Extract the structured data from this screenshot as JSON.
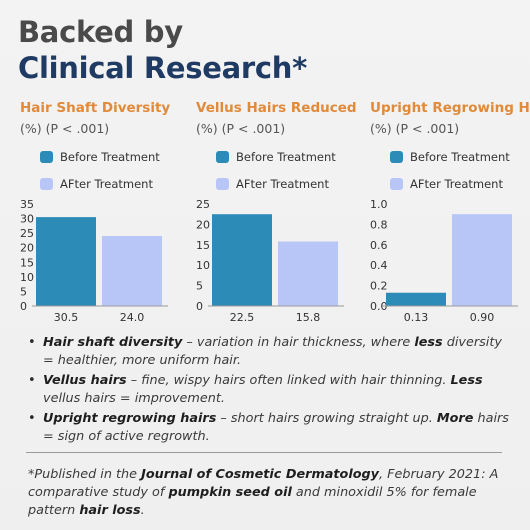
{
  "header": {
    "line1": "Backed by",
    "line2": "Clinical Research*"
  },
  "colors": {
    "before": "#2d8bb8",
    "after": "#b8c6f7",
    "title_accent": "#e08a3a",
    "heading_dark": "#1f3a63"
  },
  "legend": {
    "before": "Before Treatment",
    "after": "AFter Treatment"
  },
  "chart_data": [
    {
      "type": "bar",
      "title": "Hair Shaft Diversity",
      "subtitle": "(%) (P < .001)",
      "categories": [
        "Before Treatment",
        "AFter Treatment"
      ],
      "values": [
        30.5,
        24.0
      ],
      "value_labels": [
        "30.5",
        "24.0"
      ],
      "ylim": [
        0,
        35
      ],
      "yticks": [
        "0",
        "5",
        "10",
        "15",
        "20",
        "25",
        "30",
        "35"
      ],
      "xlabel": "",
      "ylabel": ""
    },
    {
      "type": "bar",
      "title": "Vellus Hairs Reduced",
      "subtitle": "(%) (P < .001)",
      "categories": [
        "Before Treatment",
        "AFter Treatment"
      ],
      "values": [
        22.5,
        15.8
      ],
      "value_labels": [
        "22.5",
        "15.8"
      ],
      "ylim": [
        0,
        25
      ],
      "yticks": [
        "0",
        "5",
        "10",
        "15",
        "20",
        "25"
      ],
      "xlabel": "",
      "ylabel": ""
    },
    {
      "type": "bar",
      "title": "Upright Regrowing Hair",
      "subtitle": "(%) (P < .001)",
      "categories": [
        "Before Treatment",
        "AFter Treatment"
      ],
      "values": [
        0.13,
        0.9
      ],
      "value_labels": [
        "0.13",
        "0.90"
      ],
      "ylim": [
        0,
        1.0
      ],
      "yticks": [
        "0.0",
        "0.2",
        "0.4",
        "0.6",
        "0.8",
        "1.0"
      ],
      "xlabel": "",
      "ylabel": ""
    }
  ],
  "notes": [
    {
      "term": "Hair shaft diversity",
      "p1": " – variation in hair thickness, where ",
      "em": "less",
      "p2": " diversity = healthier, more uniform hair."
    },
    {
      "term": "Vellus hairs",
      "p1": " – fine, wispy hairs often linked with hair thinning. ",
      "em": "Less",
      "p2": " vellus hairs = improvement."
    },
    {
      "term": "Upright regrowing hairs",
      "p1": " – short hairs growing straight up. ",
      "em": "More",
      "p2": " hairs = sign of active regrowth."
    }
  ],
  "footnote": {
    "t1": "*Published in the ",
    "journal": "Journal of Cosmetic Dermatology",
    "t2": ", February 2021: A comparative study of ",
    "ingredient": "pumpkin seed oil",
    "t3": " and minoxidil 5% for female pattern ",
    "condition": "hair loss",
    "t4": "."
  }
}
